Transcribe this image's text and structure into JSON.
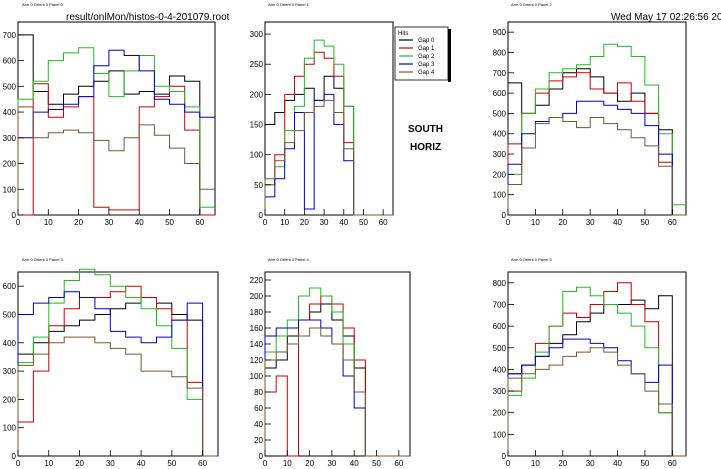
{
  "header": {
    "file_path": "result/onlMon/histos-0-4-201079.root",
    "timestamp": "Wed May 17 02:26:56 2006"
  },
  "legend": {
    "title": "Hits",
    "entries": [
      "Gap 0",
      "Gap 1",
      "Gap 2",
      "Gap 3",
      "Gap 4"
    ]
  },
  "annotation": {
    "line1": "SOUTH",
    "line2": "HORIZ"
  },
  "colors": {
    "Gap 0": "#000000",
    "Gap 1": "#cc0000",
    "Gap 2": "#22bb22",
    "Gap 3": "#0000cc",
    "Gap 4": "#7a5533"
  },
  "chart_data": [
    {
      "type": "line",
      "title": "Arm 0 Orient 0 Panel 0",
      "xlim": [
        0,
        65
      ],
      "ylim": [
        0,
        750
      ],
      "xticks": [
        0,
        10,
        20,
        30,
        40,
        50,
        60
      ],
      "yticks": [
        0,
        100,
        200,
        300,
        400,
        500,
        600,
        700
      ],
      "x": [
        0,
        5,
        10,
        15,
        20,
        25,
        30,
        35,
        40,
        45,
        50,
        55,
        60,
        65
      ],
      "series": [
        {
          "name": "Gap 0",
          "values": [
            700,
            480,
            430,
            470,
            500,
            520,
            560,
            470,
            480,
            470,
            540,
            520,
            0,
            0
          ]
        },
        {
          "name": "Gap 1",
          "values": [
            0,
            510,
            380,
            420,
            460,
            30,
            20,
            20,
            420,
            460,
            500,
            330,
            0,
            0
          ]
        },
        {
          "name": "Gap 2",
          "values": [
            450,
            520,
            600,
            630,
            650,
            550,
            460,
            560,
            620,
            500,
            480,
            420,
            30,
            0
          ]
        },
        {
          "name": "Gap 3",
          "values": [
            300,
            400,
            410,
            430,
            460,
            580,
            640,
            620,
            560,
            450,
            430,
            400,
            380,
            0
          ]
        },
        {
          "name": "Gap 4",
          "values": [
            420,
            300,
            320,
            330,
            320,
            290,
            250,
            300,
            350,
            310,
            260,
            200,
            100,
            0
          ]
        }
      ]
    },
    {
      "type": "line",
      "title": "Arm 0 Orient 0 Panel 1",
      "xlim": [
        0,
        65
      ],
      "ylim": [
        0,
        320
      ],
      "xticks": [
        0,
        10,
        20,
        30,
        40,
        50,
        60
      ],
      "yticks": [
        0,
        50,
        100,
        150,
        200,
        250,
        300
      ],
      "x": [
        0,
        5,
        10,
        15,
        20,
        25,
        30,
        35,
        40,
        45,
        50,
        55,
        60,
        65
      ],
      "series": [
        {
          "name": "Gap 0",
          "values": [
            150,
            170,
            190,
            200,
            210,
            190,
            230,
            210,
            180,
            0,
            0,
            0,
            0,
            0
          ]
        },
        {
          "name": "Gap 1",
          "values": [
            50,
            100,
            200,
            230,
            250,
            270,
            260,
            230,
            120,
            0,
            0,
            0,
            0,
            0
          ]
        },
        {
          "name": "Gap 2",
          "values": [
            50,
            80,
            140,
            180,
            260,
            290,
            280,
            250,
            180,
            0,
            0,
            0,
            0,
            0
          ]
        },
        {
          "name": "Gap 3",
          "values": [
            30,
            60,
            110,
            170,
            10,
            190,
            200,
            150,
            90,
            0,
            0,
            0,
            0,
            0
          ]
        },
        {
          "name": "Gap 4",
          "values": [
            60,
            90,
            120,
            140,
            170,
            180,
            190,
            170,
            110,
            0,
            0,
            0,
            0,
            0
          ]
        }
      ]
    },
    {
      "type": "line",
      "title": "Arm 0 Orient 0 Panel 2",
      "xlim": [
        0,
        65
      ],
      "ylim": [
        0,
        950
      ],
      "xticks": [
        0,
        10,
        20,
        30,
        40,
        50,
        60
      ],
      "yticks": [
        0,
        100,
        200,
        300,
        400,
        500,
        600,
        700,
        800,
        900
      ],
      "x": [
        0,
        5,
        10,
        15,
        20,
        25,
        30,
        35,
        40,
        45,
        50,
        55,
        60,
        65
      ],
      "series": [
        {
          "name": "Gap 0",
          "values": [
            650,
            500,
            540,
            620,
            700,
            720,
            680,
            600,
            560,
            600,
            500,
            420,
            0,
            0
          ]
        },
        {
          "name": "Gap 1",
          "values": [
            350,
            500,
            600,
            660,
            680,
            700,
            620,
            600,
            650,
            560,
            500,
            260,
            0,
            0
          ]
        },
        {
          "name": "Gap 2",
          "values": [
            200,
            500,
            620,
            700,
            720,
            740,
            780,
            840,
            830,
            780,
            640,
            400,
            50,
            0
          ]
        },
        {
          "name": "Gap 3",
          "values": [
            250,
            400,
            460,
            480,
            500,
            560,
            560,
            540,
            520,
            500,
            440,
            300,
            0,
            0
          ]
        },
        {
          "name": "Gap 4",
          "values": [
            150,
            330,
            450,
            480,
            460,
            430,
            480,
            450,
            420,
            380,
            340,
            240,
            0,
            0
          ]
        }
      ]
    },
    {
      "type": "line",
      "title": "Arm 0 Orient 0 Panel 3",
      "xlim": [
        0,
        65
      ],
      "ylim": [
        0,
        650
      ],
      "xticks": [
        0,
        10,
        20,
        30,
        40,
        50,
        60
      ],
      "yticks": [
        0,
        100,
        200,
        300,
        400,
        500,
        600
      ],
      "x": [
        0,
        5,
        10,
        15,
        20,
        25,
        30,
        35,
        40,
        45,
        50,
        55,
        60,
        65
      ],
      "series": [
        {
          "name": "Gap 0",
          "values": [
            360,
            400,
            440,
            460,
            480,
            500,
            520,
            540,
            560,
            540,
            500,
            480,
            0,
            0
          ]
        },
        {
          "name": "Gap 1",
          "values": [
            120,
            300,
            460,
            520,
            560,
            560,
            580,
            600,
            560,
            520,
            480,
            260,
            0,
            0
          ]
        },
        {
          "name": "Gap 2",
          "values": [
            330,
            420,
            540,
            620,
            660,
            640,
            600,
            560,
            520,
            460,
            380,
            200,
            0,
            0
          ]
        },
        {
          "name": "Gap 3",
          "values": [
            500,
            540,
            560,
            580,
            560,
            520,
            440,
            420,
            400,
            420,
            480,
            540,
            0,
            0
          ]
        },
        {
          "name": "Gap 4",
          "values": [
            320,
            360,
            400,
            420,
            420,
            400,
            380,
            360,
            300,
            300,
            280,
            240,
            0,
            0
          ]
        }
      ]
    },
    {
      "type": "line",
      "title": "Arm 0 Orient 0 Panel 4",
      "xlim": [
        0,
        65
      ],
      "ylim": [
        0,
        230
      ],
      "xticks": [
        0,
        10,
        20,
        30,
        40,
        50,
        60
      ],
      "yticks": [
        0,
        20,
        40,
        60,
        80,
        100,
        120,
        140,
        160,
        180,
        200,
        220
      ],
      "x": [
        0,
        5,
        10,
        15,
        20,
        25,
        30,
        35,
        40,
        45,
        50,
        55,
        60,
        65
      ],
      "series": [
        {
          "name": "Gap 0",
          "values": [
            110,
            120,
            150,
            170,
            180,
            190,
            170,
            150,
            110,
            0,
            0,
            0,
            0,
            0
          ]
        },
        {
          "name": "Gap 1",
          "values": [
            80,
            100,
            0,
            170,
            190,
            200,
            190,
            160,
            120,
            0,
            0,
            0,
            0,
            0
          ]
        },
        {
          "name": "Gap 2",
          "values": [
            130,
            150,
            170,
            200,
            210,
            200,
            180,
            140,
            80,
            0,
            0,
            0,
            0,
            0
          ]
        },
        {
          "name": "Gap 3",
          "values": [
            150,
            160,
            160,
            170,
            170,
            160,
            140,
            100,
            60,
            0,
            0,
            0,
            0,
            0
          ]
        },
        {
          "name": "Gap 4",
          "values": [
            120,
            130,
            140,
            150,
            160,
            150,
            140,
            120,
            80,
            0,
            0,
            0,
            0,
            0
          ]
        }
      ]
    },
    {
      "type": "line",
      "title": "Arm 0 Orient 0 Panel 5",
      "xlim": [
        0,
        65
      ],
      "ylim": [
        0,
        850
      ],
      "xticks": [
        0,
        10,
        20,
        30,
        40,
        50,
        60
      ],
      "yticks": [
        0,
        100,
        200,
        300,
        400,
        500,
        600,
        700,
        800
      ],
      "x": [
        0,
        5,
        10,
        15,
        20,
        25,
        30,
        35,
        40,
        45,
        50,
        55,
        60,
        65
      ],
      "series": [
        {
          "name": "Gap 0",
          "values": [
            380,
            420,
            460,
            520,
            560,
            620,
            660,
            700,
            700,
            720,
            680,
            740,
            0,
            0
          ]
        },
        {
          "name": "Gap 1",
          "values": [
            300,
            420,
            520,
            600,
            660,
            640,
            700,
            760,
            800,
            700,
            620,
            200,
            0,
            0
          ]
        },
        {
          "name": "Gap 2",
          "values": [
            280,
            360,
            480,
            600,
            760,
            780,
            740,
            700,
            660,
            600,
            500,
            200,
            0,
            0
          ]
        },
        {
          "name": "Gap 3",
          "values": [
            380,
            420,
            460,
            500,
            540,
            540,
            520,
            500,
            440,
            380,
            340,
            420,
            0,
            0
          ]
        },
        {
          "name": "Gap 4",
          "values": [
            360,
            380,
            400,
            420,
            460,
            480,
            500,
            480,
            420,
            380,
            300,
            240,
            0,
            0
          ]
        }
      ]
    }
  ]
}
